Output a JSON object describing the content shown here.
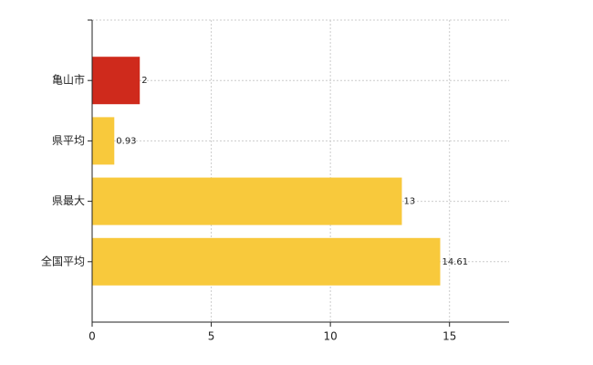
{
  "chart_data": {
    "type": "bar",
    "orientation": "horizontal",
    "categories": [
      "亀山市",
      "県平均",
      "県最大",
      "全国平均"
    ],
    "values": [
      2,
      0.93,
      13,
      14.61
    ],
    "colors": [
      "#cf2a1c",
      "#f8c93c",
      "#f8c93c",
      "#f8c93c"
    ],
    "xlim": [
      0,
      17.5
    ],
    "xticks": [
      0,
      5,
      10,
      15
    ],
    "grid": true
  }
}
